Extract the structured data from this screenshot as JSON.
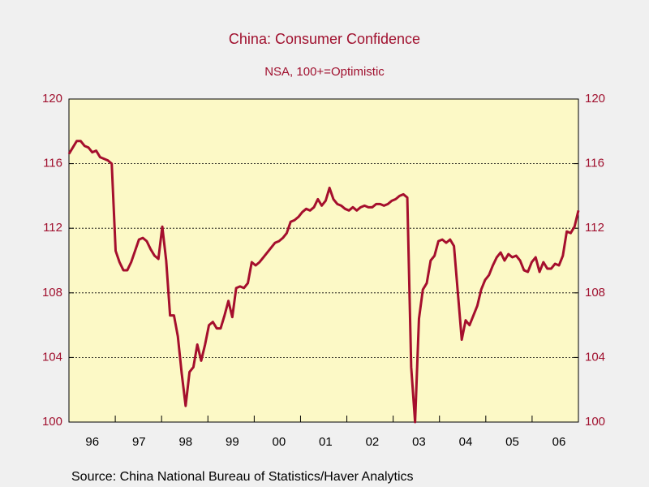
{
  "chart_data": {
    "type": "line",
    "title": "China: Consumer Confidence",
    "subtitle": "NSA, 100+=Optimistic",
    "source": "Source:  China National Bureau of Statistics/Haver Analytics",
    "categories": [
      null,
      null,
      null,
      null,
      null,
      null,
      "96",
      null,
      null,
      null,
      null,
      null,
      null,
      null,
      null,
      null,
      null,
      null,
      "97",
      null,
      null,
      null,
      null,
      null,
      null,
      null,
      null,
      null,
      null,
      null,
      "98",
      null,
      null,
      null,
      null,
      null,
      null,
      null,
      null,
      null,
      null,
      null,
      "99",
      null,
      null,
      null,
      null,
      null,
      null,
      null,
      null,
      null,
      null,
      null,
      "00",
      null,
      null,
      null,
      null,
      null,
      null,
      null,
      null,
      null,
      null,
      null,
      "01",
      null,
      null,
      null,
      null,
      null,
      null,
      null,
      null,
      null,
      null,
      null,
      "02",
      null,
      null,
      null,
      null,
      null,
      null,
      null,
      null,
      null,
      null,
      null,
      "03",
      null,
      null,
      null,
      null,
      null,
      null,
      null,
      null,
      null,
      null,
      null,
      "04",
      null,
      null,
      null,
      null,
      null,
      null,
      null,
      null,
      null,
      null,
      null,
      "05",
      null,
      null,
      null,
      null,
      null,
      null,
      null,
      null,
      null,
      null,
      null,
      "06",
      null,
      null,
      null,
      null,
      null
    ],
    "series": [
      {
        "color": "#a50f2d",
        "values": [
          116.6,
          117.0,
          117.4,
          117.4,
          117.1,
          117.0,
          116.7,
          116.8,
          116.4,
          116.3,
          116.2,
          116.0,
          110.6,
          109.9,
          109.4,
          109.4,
          109.9,
          110.6,
          111.3,
          111.4,
          111.2,
          110.7,
          110.3,
          110.1,
          112.1,
          110.0,
          106.6,
          106.6,
          105.3,
          103.0,
          101.0,
          103.1,
          103.4,
          104.8,
          103.8,
          104.8,
          106.0,
          106.2,
          105.8,
          105.8,
          106.6,
          107.5,
          106.5,
          108.3,
          108.4,
          108.3,
          108.6,
          109.9,
          109.7,
          109.9,
          110.2,
          110.5,
          110.8,
          111.1,
          111.2,
          111.4,
          111.7,
          112.4,
          112.5,
          112.7,
          113.0,
          113.2,
          113.1,
          113.3,
          113.8,
          113.4,
          113.7,
          114.5,
          113.8,
          113.5,
          113.4,
          113.2,
          113.1,
          113.3,
          113.1,
          113.3,
          113.4,
          113.3,
          113.3,
          113.5,
          113.5,
          113.4,
          113.5,
          113.7,
          113.8,
          114.0,
          114.1,
          113.9,
          103.4,
          100.0,
          106.4,
          108.2,
          108.6,
          110.0,
          110.3,
          111.2,
          111.3,
          111.1,
          111.3,
          110.9,
          108.0,
          105.1,
          106.3,
          106.0,
          106.6,
          107.2,
          108.2,
          108.8,
          109.1,
          109.7,
          110.2,
          110.5,
          110.0,
          110.4,
          110.2,
          110.3,
          110.0,
          109.4,
          109.3,
          109.9,
          110.2,
          109.3,
          109.9,
          109.5,
          109.5,
          109.8,
          109.7,
          110.3,
          111.8,
          111.7,
          112.1,
          113.1
        ]
      }
    ],
    "ylim": [
      100,
      120
    ],
    "yticks": [
      100,
      104,
      108,
      112,
      116,
      120
    ],
    "y2lim": [
      100,
      120
    ],
    "y2ticks": [
      100,
      104,
      108,
      112,
      116,
      120
    ],
    "grid": true
  }
}
